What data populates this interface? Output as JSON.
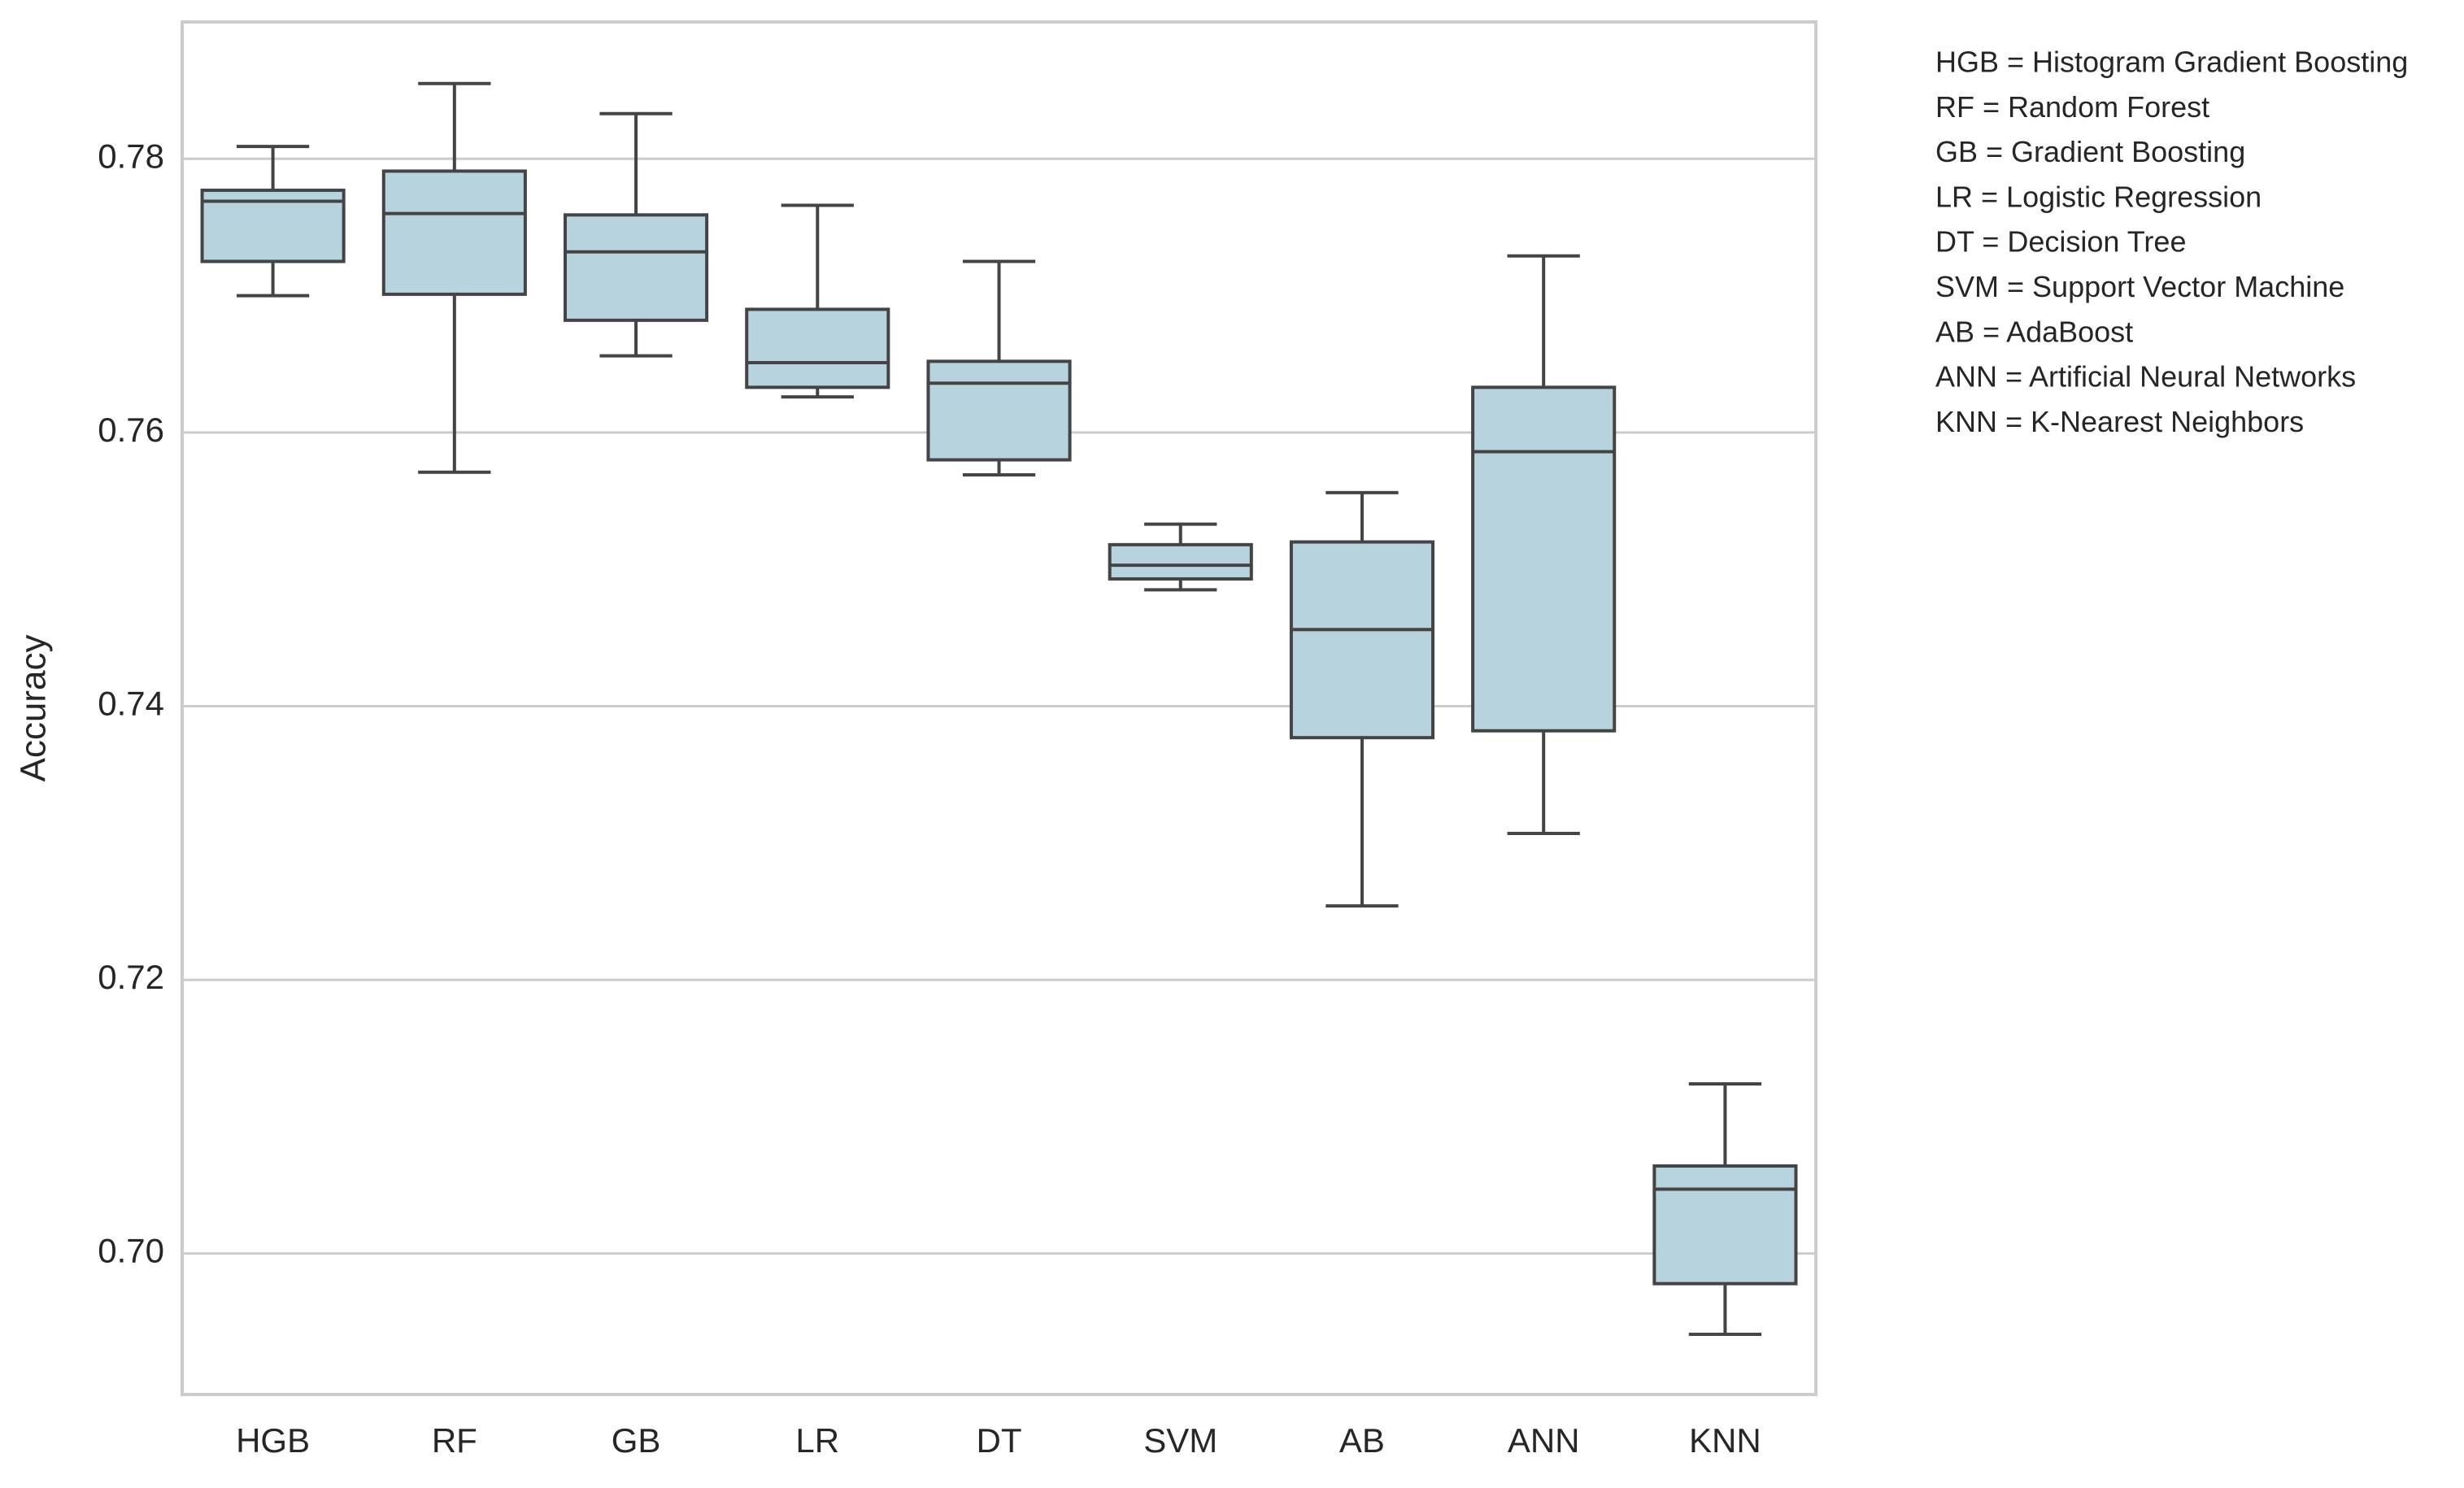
{
  "chart_data": {
    "type": "box",
    "ylabel": "Accuracy",
    "categories": [
      "HGB",
      "RF",
      "GB",
      "LR",
      "DT",
      "SVM",
      "AB",
      "ANN",
      "KNN"
    ],
    "boxes": [
      {
        "min": 0.77,
        "q1": 0.7725,
        "median": 0.7769,
        "q3": 0.7777,
        "max": 0.7809
      },
      {
        "min": 0.7571,
        "q1": 0.7701,
        "median": 0.776,
        "q3": 0.7791,
        "max": 0.7855
      },
      {
        "min": 0.7656,
        "q1": 0.7682,
        "median": 0.7732,
        "q3": 0.7759,
        "max": 0.7833
      },
      {
        "min": 0.7626,
        "q1": 0.7633,
        "median": 0.7651,
        "q3": 0.769,
        "max": 0.7766
      },
      {
        "min": 0.7569,
        "q1": 0.758,
        "median": 0.7636,
        "q3": 0.7652,
        "max": 0.7725
      },
      {
        "min": 0.7485,
        "q1": 0.7493,
        "median": 0.7503,
        "q3": 0.7518,
        "max": 0.7533
      },
      {
        "min": 0.7254,
        "q1": 0.7377,
        "median": 0.7456,
        "q3": 0.752,
        "max": 0.7556
      },
      {
        "min": 0.7307,
        "q1": 0.7382,
        "median": 0.7586,
        "q3": 0.7633,
        "max": 0.7729
      },
      {
        "min": 0.6941,
        "q1": 0.6978,
        "median": 0.7047,
        "q3": 0.7064,
        "max": 0.7124
      }
    ],
    "color": "#b7d3de",
    "edge_color": "#444444",
    "ylim": [
      0.6897,
      0.79
    ],
    "yticks": [
      {
        "value": 0.7,
        "label": "0.70"
      },
      0.72,
      0.74,
      0.76,
      0.78
    ],
    "grid": true,
    "notes": [
      "HGB = Histogram Gradient Boosting",
      "RF = Random Forest",
      "GB = Gradient Boosting",
      "LR = Logistic Regression",
      "DT = Decision Tree",
      "SVM = Support Vector Machine",
      "AB = AdaBoost",
      "ANN = Artificial Neural Networks",
      "KNN = K-Nearest Neighbors"
    ]
  }
}
